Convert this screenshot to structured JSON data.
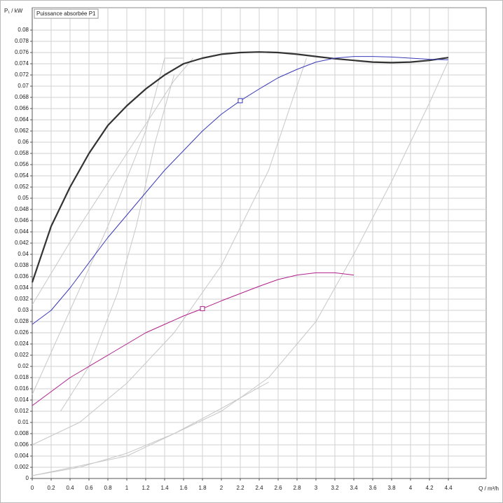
{
  "chart_data": {
    "type": "line",
    "title": "Puissance absorbée P1",
    "y_label": "P₁ / kW",
    "x_label": "Q / m³/h",
    "xlim": [
      0,
      4.8
    ],
    "ylim": [
      0,
      0.084
    ],
    "xticks": [
      0,
      0.2,
      0.4,
      0.6,
      0.8,
      1,
      1.2,
      1.4,
      1.6,
      1.8,
      2,
      2.2,
      2.4,
      2.6,
      2.8,
      3,
      3.2,
      3.4,
      3.6,
      3.8,
      4,
      4.2,
      4.4
    ],
    "yticks": [
      0,
      0.002,
      0.004,
      0.006,
      0.008,
      0.01,
      0.012,
      0.014,
      0.016,
      0.018,
      0.02,
      0.022,
      0.024,
      0.026,
      0.028,
      0.03,
      0.032,
      0.034,
      0.036,
      0.038,
      0.04,
      0.042,
      0.044,
      0.046,
      0.048,
      0.05,
      0.052,
      0.054,
      0.056,
      0.058,
      0.06,
      0.062,
      0.064,
      0.066,
      0.068,
      0.07,
      0.072,
      0.074,
      0.076,
      0.078,
      0.08
    ],
    "grid": true,
    "series": [
      {
        "color": "#c8c8c8",
        "width": 1,
        "x": [
          0,
          0.5,
          1,
          1.5,
          2,
          2.5
        ],
        "values": [
          0.0005,
          0.002,
          0.0045,
          0.008,
          0.0125,
          0.0172
        ]
      },
      {
        "color": "#c8c8c8",
        "width": 1,
        "x": [
          0,
          1,
          2,
          2.5,
          3,
          3.4,
          3.8,
          4.2,
          4.4
        ],
        "values": [
          0.0005,
          0.004,
          0.012,
          0.018,
          0.028,
          0.04,
          0.053,
          0.067,
          0.0745
        ]
      },
      {
        "color": "#c8c8c8",
        "width": 1,
        "x": [
          0,
          0.5,
          1,
          1.5,
          2,
          2.5,
          2.9
        ],
        "values": [
          0.006,
          0.01,
          0.017,
          0.026,
          0.038,
          0.055,
          0.075
        ]
      },
      {
        "color": "#c8c8c8",
        "width": 1,
        "x": [
          0.3,
          0.6,
          0.9,
          1.1,
          1.3,
          1.5
        ],
        "values": [
          0.012,
          0.02,
          0.033,
          0.045,
          0.06,
          0.072
        ]
      },
      {
        "color": "#c8c8c8",
        "width": 1,
        "x": [
          0,
          0.4,
          0.8,
          1.2,
          1.4,
          1.6
        ],
        "values": [
          0.015,
          0.03,
          0.045,
          0.062,
          0.075,
          0.075
        ]
      },
      {
        "color": "#c8c8c8",
        "width": 1,
        "x": [
          0,
          0.5,
          1,
          1.5,
          1.7
        ],
        "values": [
          0.031,
          0.045,
          0.058,
          0.071,
          0.075
        ]
      },
      {
        "color": "#333333",
        "width": 2.2,
        "x": [
          0,
          0.2,
          0.4,
          0.6,
          0.8,
          1,
          1.2,
          1.4,
          1.6,
          1.8,
          2,
          2.2,
          2.4,
          2.6,
          2.8,
          3,
          3.2,
          3.4,
          3.6,
          3.8,
          4,
          4.2,
          4.4
        ],
        "values": [
          0.035,
          0.045,
          0.052,
          0.058,
          0.063,
          0.0665,
          0.0695,
          0.072,
          0.074,
          0.075,
          0.0757,
          0.076,
          0.0761,
          0.076,
          0.0757,
          0.0753,
          0.0749,
          0.0746,
          0.0743,
          0.0742,
          0.0743,
          0.0746,
          0.0751
        ]
      },
      {
        "color": "#3a3ab8",
        "width": 1,
        "x": [
          0,
          0.2,
          0.4,
          0.6,
          0.8,
          1,
          1.2,
          1.4,
          1.6,
          1.8,
          2,
          2.2,
          2.4,
          2.6,
          2.8,
          3,
          3.2,
          3.4,
          3.6,
          3.8,
          4,
          4.2,
          4.4
        ],
        "values": [
          0.0275,
          0.03,
          0.034,
          0.0385,
          0.043,
          0.047,
          0.051,
          0.055,
          0.0585,
          0.062,
          0.065,
          0.0674,
          0.0695,
          0.0715,
          0.073,
          0.0743,
          0.075,
          0.0753,
          0.0753,
          0.0752,
          0.075,
          0.0748,
          0.0747
        ]
      },
      {
        "color": "#b0208a",
        "width": 1,
        "x": [
          0,
          0.2,
          0.4,
          0.6,
          0.8,
          1,
          1.2,
          1.4,
          1.6,
          1.8,
          2,
          2.2,
          2.4,
          2.6,
          2.8,
          3,
          3.2,
          3.4
        ],
        "values": [
          0.013,
          0.0155,
          0.018,
          0.02,
          0.022,
          0.024,
          0.026,
          0.0275,
          0.029,
          0.0303,
          0.0317,
          0.033,
          0.0343,
          0.0355,
          0.0363,
          0.0367,
          0.0367,
          0.0363
        ]
      }
    ],
    "points": [
      {
        "x": 2.2,
        "y": 0.0674,
        "color": "#3a3ab8"
      },
      {
        "x": 1.8,
        "y": 0.0303,
        "color": "#b0208a"
      }
    ]
  }
}
